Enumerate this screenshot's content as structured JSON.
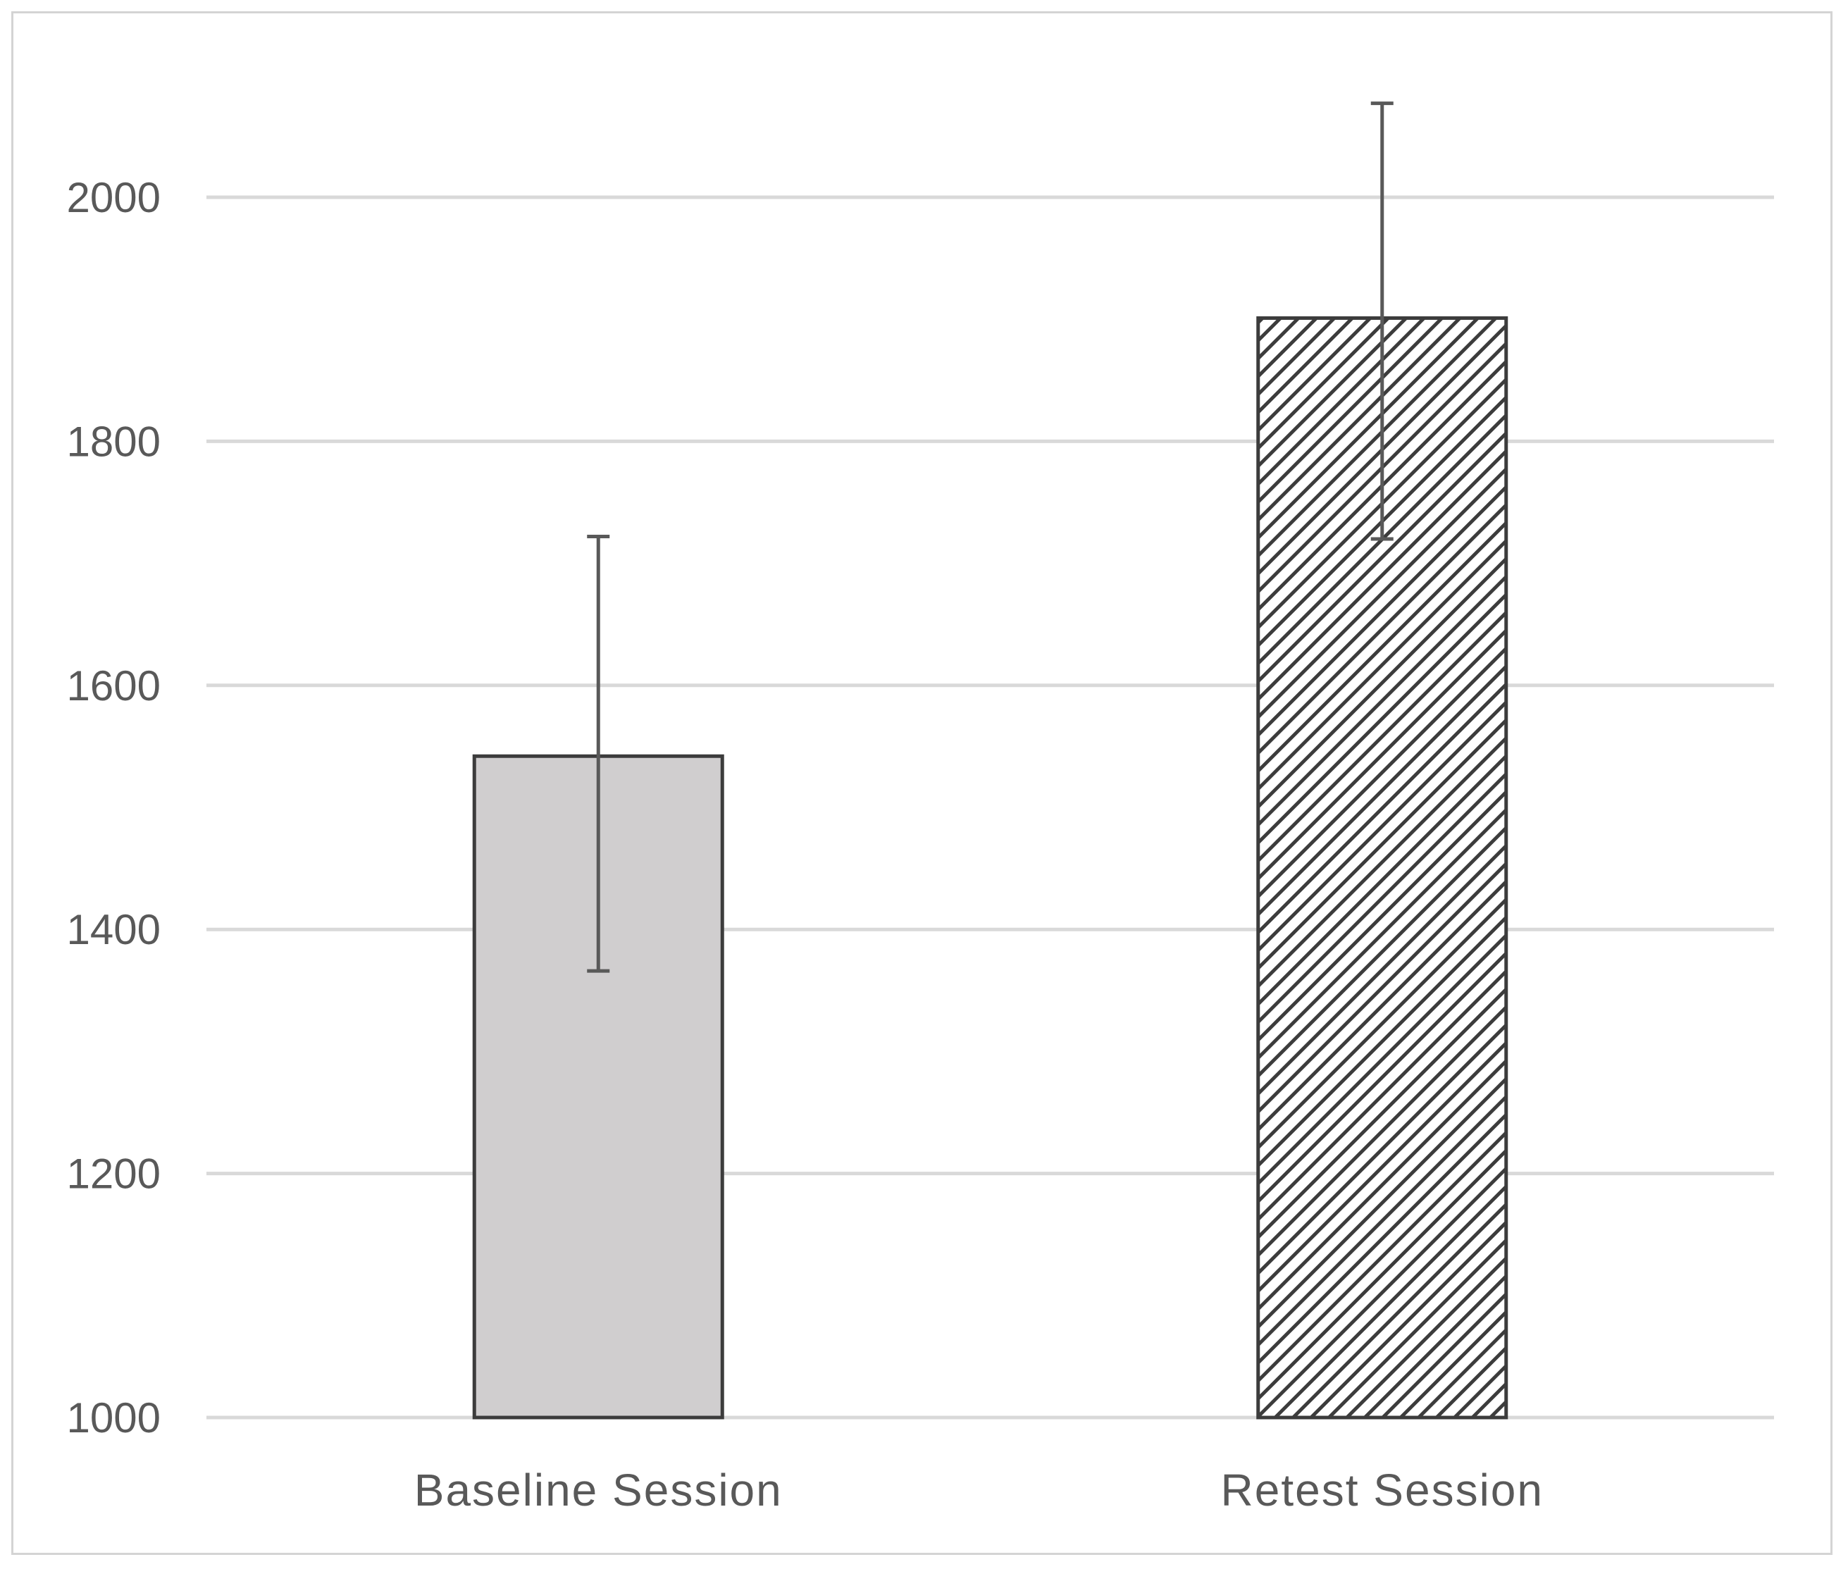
{
  "chart_data": {
    "type": "bar",
    "title": "",
    "xlabel": "",
    "ylabel": "",
    "categories": [
      "Baseline Session",
      "Retest Session"
    ],
    "values": [
      1542,
      1901
    ],
    "error_bars": [
      {
        "low": 1366,
        "high": 1722
      },
      {
        "low": 1720,
        "high": 2077
      }
    ],
    "ylim": [
      1000,
      2000
    ],
    "yticks": [
      "1000",
      "1200",
      "1400",
      "1600",
      "1800",
      "2000"
    ],
    "grid": true,
    "legend": "none",
    "bar_styles": [
      {
        "fill": "#d0cecf",
        "pattern": "solid",
        "stroke": "#3c3c3c"
      },
      {
        "fill": "#ffffff",
        "pattern": "diagonal-hatch",
        "stroke": "#3c3c3c"
      }
    ],
    "colors": {
      "grid": "#d9d9d9",
      "error_bar": "#595959",
      "text": "#595959"
    }
  }
}
